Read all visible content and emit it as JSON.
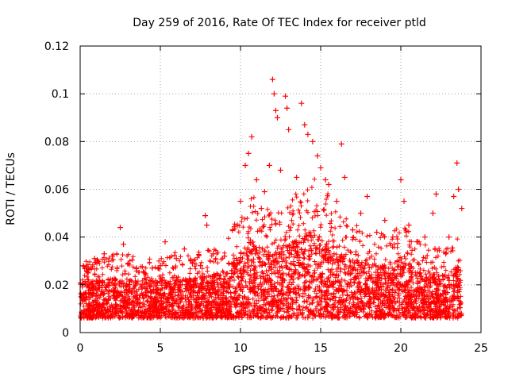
{
  "chart_data": {
    "type": "scatter",
    "title": "Day 259 of 2016, Rate Of TEC Index for receiver ptld",
    "xlabel": "GPS time / hours",
    "ylabel": "ROTI / TECUs",
    "xlim": [
      0,
      25
    ],
    "ylim": [
      0,
      0.12
    ],
    "xticks": [
      0,
      5,
      10,
      15,
      20,
      25
    ],
    "yticks": [
      0,
      0.02,
      0.04,
      0.06,
      0.08,
      0.1,
      0.12
    ],
    "xtick_labels": [
      "0",
      "5",
      "10",
      "15",
      "20",
      "25"
    ],
    "ytick_labels": [
      "0",
      "0.02",
      "0.04",
      "0.06",
      "0.08",
      "0.1",
      "0.12"
    ],
    "grid": true,
    "marker": "+",
    "series": [
      {
        "name": "ROTI",
        "color": "#ff0000",
        "envelope": {
          "hours": [
            0,
            1,
            2,
            3,
            4,
            5,
            6,
            7,
            8,
            9,
            10,
            10.5,
            11,
            12,
            12.5,
            13,
            14,
            15,
            16,
            17,
            18,
            19,
            20,
            21,
            22,
            23,
            23.5,
            23.8
          ],
          "typical_max": [
            0.025,
            0.025,
            0.027,
            0.027,
            0.025,
            0.026,
            0.028,
            0.027,
            0.029,
            0.03,
            0.045,
            0.055,
            0.05,
            0.045,
            0.05,
            0.05,
            0.06,
            0.06,
            0.045,
            0.04,
            0.038,
            0.035,
            0.04,
            0.033,
            0.03,
            0.03,
            0.035,
            0.035
          ]
        },
        "points": [
          [
            0.2,
            0.028
          ],
          [
            0.5,
            0.025
          ],
          [
            0.9,
            0.031
          ],
          [
            1.5,
            0.033
          ],
          [
            2.0,
            0.032
          ],
          [
            2.5,
            0.044
          ],
          [
            2.7,
            0.037
          ],
          [
            3.0,
            0.029
          ],
          [
            3.5,
            0.027
          ],
          [
            4.0,
            0.025
          ],
          [
            4.5,
            0.027
          ],
          [
            5.0,
            0.028
          ],
          [
            5.3,
            0.038
          ],
          [
            6.0,
            0.031
          ],
          [
            6.5,
            0.035
          ],
          [
            7.0,
            0.029
          ],
          [
            7.5,
            0.028
          ],
          [
            7.8,
            0.049
          ],
          [
            7.9,
            0.045
          ],
          [
            8.3,
            0.033
          ],
          [
            9.0,
            0.032
          ],
          [
            9.5,
            0.043
          ],
          [
            9.8,
            0.045
          ],
          [
            10.0,
            0.055
          ],
          [
            10.3,
            0.07
          ],
          [
            10.5,
            0.075
          ],
          [
            10.7,
            0.082
          ],
          [
            11.0,
            0.064
          ],
          [
            11.3,
            0.052
          ],
          [
            11.5,
            0.059
          ],
          [
            11.8,
            0.07
          ],
          [
            12.0,
            0.106
          ],
          [
            12.1,
            0.1
          ],
          [
            12.2,
            0.093
          ],
          [
            12.3,
            0.09
          ],
          [
            12.5,
            0.068
          ],
          [
            12.8,
            0.099
          ],
          [
            12.9,
            0.094
          ],
          [
            13.0,
            0.085
          ],
          [
            13.5,
            0.065
          ],
          [
            13.8,
            0.096
          ],
          [
            14.0,
            0.087
          ],
          [
            14.2,
            0.083
          ],
          [
            14.5,
            0.08
          ],
          [
            14.8,
            0.074
          ],
          [
            15.0,
            0.069
          ],
          [
            15.3,
            0.064
          ],
          [
            15.5,
            0.062
          ],
          [
            16.0,
            0.055
          ],
          [
            16.3,
            0.079
          ],
          [
            16.5,
            0.065
          ],
          [
            17.0,
            0.043
          ],
          [
            17.5,
            0.05
          ],
          [
            17.9,
            0.057
          ],
          [
            18.5,
            0.042
          ],
          [
            19.0,
            0.047
          ],
          [
            19.5,
            0.04
          ],
          [
            20.0,
            0.064
          ],
          [
            20.2,
            0.055
          ],
          [
            20.5,
            0.045
          ],
          [
            21.0,
            0.038
          ],
          [
            21.5,
            0.04
          ],
          [
            22.0,
            0.05
          ],
          [
            22.2,
            0.058
          ],
          [
            22.8,
            0.033
          ],
          [
            23.0,
            0.04
          ],
          [
            23.3,
            0.057
          ],
          [
            23.5,
            0.071
          ],
          [
            23.6,
            0.06
          ],
          [
            23.8,
            0.052
          ]
        ]
      }
    ]
  }
}
